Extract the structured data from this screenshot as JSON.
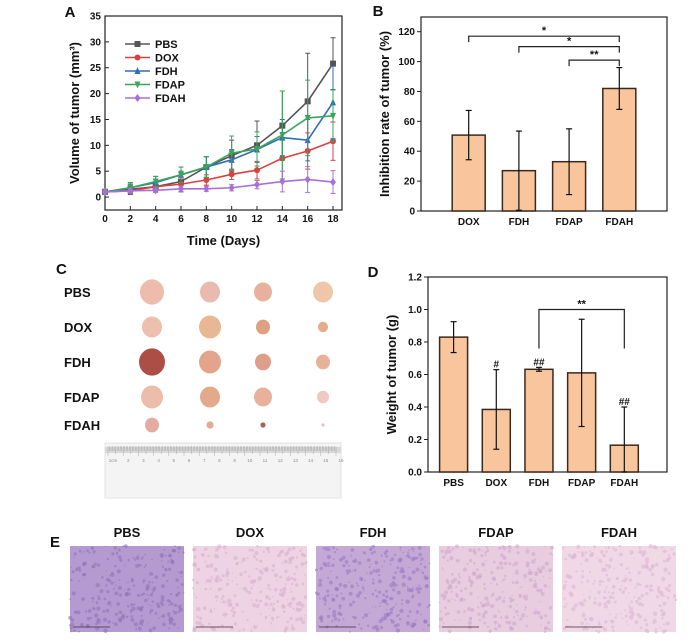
{
  "colors": {
    "bar_fill": "#f8c59c",
    "bar_stroke": "#3a2a1e",
    "PBS": "#555555",
    "DOX": "#d9413f",
    "FDH": "#2f6fb6",
    "FDAP": "#3aa45c",
    "FDAH": "#a870d6"
  },
  "chart_data": [
    {
      "panel": "A",
      "type": "line",
      "xlabel": "Time (Days)",
      "ylabel": "Volume of tumor (mm³)",
      "x": [
        0,
        2,
        4,
        6,
        8,
        10,
        12,
        14,
        16,
        18
      ],
      "xlim": [
        0,
        18
      ],
      "ylim": [
        -2.5,
        35
      ],
      "xticks": [
        0,
        2,
        4,
        6,
        8,
        10,
        12,
        14,
        16,
        18
      ],
      "yticks": [
        0,
        5,
        10,
        15,
        20,
        25,
        30,
        35
      ],
      "legend": "top-left",
      "series": [
        {
          "name": "PBS",
          "marker": "square",
          "values": [
            1,
            1.5,
            2,
            3,
            5.8,
            8,
            10,
            13.8,
            18.5,
            25.8
          ],
          "errors": [
            0.5,
            1,
            1,
            2,
            2,
            3,
            4.7,
            6.7,
            9.3,
            5
          ]
        },
        {
          "name": "DOX",
          "marker": "circle",
          "values": [
            1,
            1.2,
            2,
            2.5,
            3.3,
            4.4,
            5.2,
            7.5,
            8.9,
            10.8
          ],
          "errors": [
            0.3,
            0.5,
            0.5,
            1,
            1,
            1,
            1.7,
            4,
            3.5,
            3.7
          ]
        },
        {
          "name": "FDH",
          "marker": "triangle-up",
          "values": [
            1,
            1.8,
            2.8,
            4.3,
            5.8,
            7.2,
            9.2,
            11.5,
            11,
            18.3
          ],
          "errors": [
            0.5,
            1,
            1.2,
            1.5,
            2,
            2,
            2.5,
            3.5,
            4,
            7
          ]
        },
        {
          "name": "FDAP",
          "marker": "triangle-down",
          "values": [
            1,
            1.8,
            3,
            4.3,
            5.8,
            8.5,
            9.3,
            12,
            15.3,
            15.7
          ],
          "errors": [
            0.5,
            1,
            1,
            1.5,
            2,
            3.3,
            3.3,
            8.5,
            7.3,
            5
          ]
        },
        {
          "name": "FDAH",
          "marker": "diamond",
          "values": [
            1,
            1.2,
            1.3,
            1.6,
            1.6,
            1.8,
            2.4,
            3,
            3.4,
            2.9
          ],
          "errors": [
            0.3,
            0.3,
            0.4,
            0.5,
            0.5,
            0.6,
            0.8,
            2,
            2.5,
            2.2
          ]
        }
      ]
    },
    {
      "panel": "B",
      "type": "bar",
      "ylabel": "Inhibition rate of tumor (%)",
      "ylim": [
        0,
        130
      ],
      "yticks": [
        0,
        20,
        40,
        60,
        80,
        100,
        120
      ],
      "categories": [
        "DOX",
        "FDH",
        "FDAP",
        "FDAH"
      ],
      "values": [
        50.8,
        27,
        33,
        82
      ],
      "errors": [
        16.5,
        26.5,
        22,
        14
      ],
      "significance": [
        {
          "from": "DOX",
          "to": "FDAH",
          "y": 117,
          "label": "*"
        },
        {
          "from": "FDH",
          "to": "FDAH",
          "y": 110,
          "label": "*"
        },
        {
          "from": "FDAP",
          "to": "FDAH",
          "y": 101,
          "label": "**"
        }
      ]
    },
    {
      "panel": "D",
      "type": "bar",
      "ylabel": "Weight of tumor (g)",
      "ylim": [
        0,
        1.2
      ],
      "yticks": [
        "0.0",
        "0.2",
        "0.4",
        "0.6",
        "0.8",
        "1.0",
        "1.2"
      ],
      "categories": [
        "PBS",
        "DOX",
        "FDH",
        "FDAP",
        "FDAH"
      ],
      "values": [
        0.83,
        0.385,
        0.632,
        0.61,
        0.165
      ],
      "errors": [
        0.095,
        0.245,
        0.012,
        0.33,
        0.235
      ],
      "annotations": [
        "",
        "#",
        "##",
        "",
        "##"
      ],
      "significance": [
        {
          "from": "FDH",
          "to": "FDAH",
          "y": 1.0,
          "leg": 0.76,
          "label": "**"
        }
      ]
    }
  ],
  "panel_c": {
    "label": "C",
    "rows": [
      "PBS",
      "DOX",
      "FDH",
      "FDAP",
      "FDAH"
    ],
    "ruler_labels": [
      "1cm",
      "2",
      "3",
      "4",
      "5",
      "6",
      "7",
      "8",
      "9",
      "10",
      "11",
      "12",
      "13",
      "14",
      "15",
      "16"
    ]
  },
  "panel_e": {
    "label": "E",
    "titles": [
      "PBS",
      "DOX",
      "FDH",
      "FDAP",
      "FDAH"
    ]
  },
  "panel_labels": {
    "A": "A",
    "B": "B",
    "D": "D"
  }
}
